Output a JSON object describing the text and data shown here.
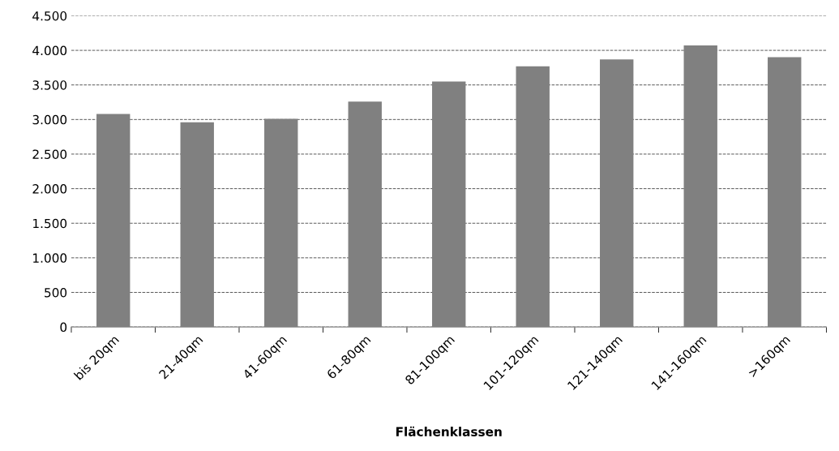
{
  "chart_data": {
    "type": "bar",
    "xlabel": "Flächenklassen",
    "categories": [
      "bis 20qm",
      "21-40qm",
      "41-60qm",
      "61-80qm",
      "81-100qm",
      "101-120qm",
      "121-140qm",
      "141-160qm",
      ">160qm"
    ],
    "values": [
      3080,
      2960,
      3010,
      3260,
      3550,
      3770,
      3870,
      4070,
      3900
    ],
    "color": "#808080",
    "ylim": [
      0,
      4500
    ],
    "yticks": [
      0,
      {
        "value": 500,
        "label": "500"
      },
      {
        "value": 1000,
        "label": "1.000"
      },
      {
        "value": 1500,
        "label": "1.500"
      },
      {
        "value": 2000,
        "label": "2.000"
      },
      {
        "value": 2500,
        "label": "2.500"
      },
      {
        "value": 3000,
        "label": "3.000"
      },
      {
        "value": 3500,
        "label": "3.500"
      },
      {
        "value": 4000,
        "label": "4.000"
      },
      {
        "value": 4500,
        "label": "4.500"
      }
    ],
    "grid": "y"
  }
}
